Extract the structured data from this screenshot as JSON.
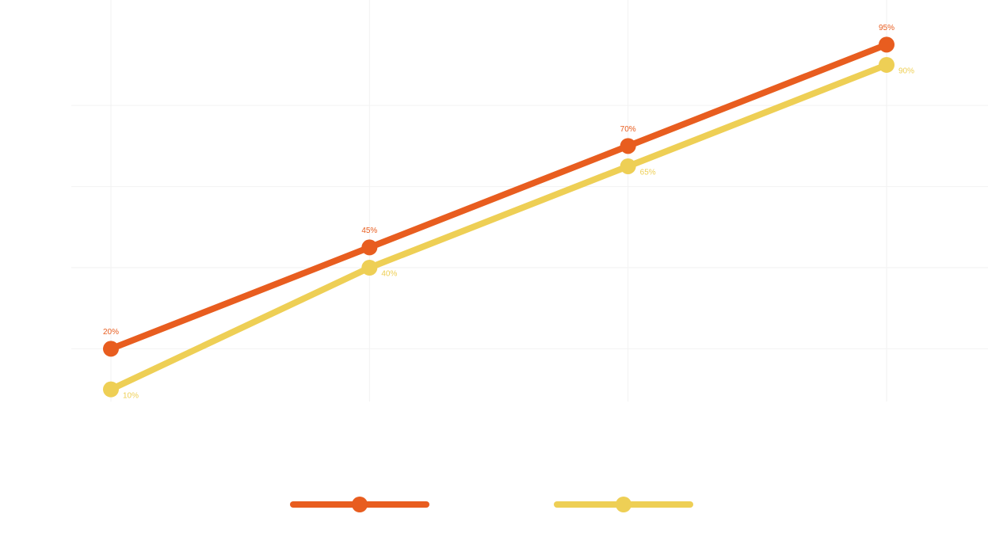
{
  "chart_data": {
    "type": "line",
    "categories": [
      null,
      null,
      null,
      null
    ],
    "series": [
      {
        "color": "#e85d1f",
        "values": [
          20,
          45,
          70,
          95
        ],
        "value_labels": [
          "20%",
          "45%",
          "70%",
          "95%"
        ]
      },
      {
        "color": "#eecf55",
        "values": [
          10,
          40,
          65,
          90
        ],
        "value_labels": [
          "10%",
          "40%",
          "65%",
          "90%"
        ]
      }
    ],
    "ylim": [
      7,
      106
    ],
    "yticks": [
      20,
      40,
      60,
      80
    ],
    "grid": true
  }
}
